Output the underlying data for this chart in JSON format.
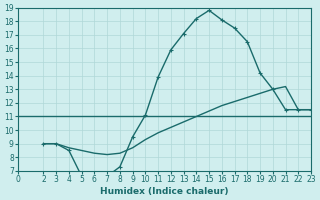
{
  "bg_color": "#d0eeee",
  "line_color": "#1a6b6b",
  "grid_color": "#b0d8d8",
  "xlabel": "Humidex (Indice chaleur)",
  "xlim": [
    0,
    23
  ],
  "ylim": [
    7,
    19
  ],
  "xticks": [
    0,
    2,
    3,
    4,
    5,
    6,
    7,
    8,
    9,
    10,
    11,
    12,
    13,
    14,
    15,
    16,
    17,
    18,
    19,
    20,
    21,
    22,
    23
  ],
  "yticks": [
    7,
    8,
    9,
    10,
    11,
    12,
    13,
    14,
    15,
    16,
    17,
    18,
    19
  ],
  "line1_x": [
    0,
    23
  ],
  "line1_y": [
    11,
    11
  ],
  "line2_x": [
    2,
    3,
    4,
    5,
    6,
    7,
    8,
    9,
    10,
    11,
    12,
    13,
    14,
    15,
    16,
    17,
    18,
    19,
    20,
    21,
    22,
    23
  ],
  "line2_y": [
    9.0,
    9.0,
    8.5,
    6.6,
    6.6,
    6.6,
    7.3,
    9.5,
    11.1,
    13.9,
    15.9,
    17.1,
    18.2,
    18.8,
    18.1,
    17.5,
    16.5,
    14.2,
    13.0,
    11.5,
    11.5,
    11.5
  ],
  "line3_x": [
    2,
    3,
    4,
    5,
    6,
    7,
    8,
    9,
    10,
    11,
    12,
    13,
    14,
    15,
    16,
    17,
    18,
    19,
    20,
    21,
    22,
    23
  ],
  "line3_y": [
    9.0,
    9.0,
    8.7,
    8.5,
    8.3,
    8.2,
    8.3,
    8.7,
    9.3,
    9.8,
    10.2,
    10.6,
    11.0,
    11.4,
    11.8,
    12.1,
    12.4,
    12.7,
    13.0,
    13.2,
    11.5,
    11.5
  ],
  "font_color": "#1a6b6b"
}
